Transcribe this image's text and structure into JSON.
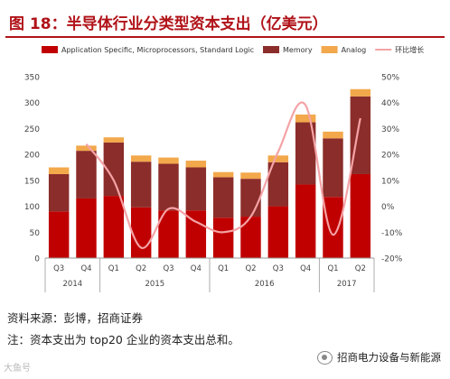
{
  "figure": {
    "title": "图 18：半导体行业分类型资本支出（亿美元）",
    "source": "资料来源：彭博，招商证券",
    "note": "注：资本支出为 top20 企业的资本支出总和。",
    "brand": "招商电力设备与新能源",
    "watermark": "大鱼号"
  },
  "chart_data": {
    "type": "bar",
    "stacked": true,
    "categories": [
      "Q3",
      "Q4",
      "Q1",
      "Q2",
      "Q3",
      "Q4",
      "Q1",
      "Q2",
      "Q3",
      "Q4",
      "Q1",
      "Q2"
    ],
    "year_groups": [
      {
        "label": "2014",
        "count": 2
      },
      {
        "label": "2015",
        "count": 4
      },
      {
        "label": "2016",
        "count": 4
      },
      {
        "label": "2017",
        "count": 2
      }
    ],
    "series": [
      {
        "name": "Application Specific, Microprocessors, Standard Logic",
        "color": "#c00000",
        "values": [
          90,
          115,
          120,
          98,
          92,
          92,
          78,
          80,
          100,
          142,
          118,
          162
        ]
      },
      {
        "name": "Memory",
        "color": "#8b2d2a",
        "values": [
          72,
          92,
          103,
          88,
          90,
          83,
          78,
          73,
          85,
          120,
          113,
          150
        ]
      },
      {
        "name": "Analog",
        "color": "#f2a84b",
        "values": [
          13,
          10,
          10,
          12,
          12,
          13,
          10,
          12,
          13,
          15,
          13,
          14
        ]
      }
    ],
    "line_series": {
      "name": "环比增长",
      "color": "#f4a3a6",
      "values": [
        null,
        24,
        10,
        -16,
        -1,
        -6,
        -10,
        -4,
        21,
        39,
        -11,
        34
      ]
    },
    "y_left": {
      "min": 0,
      "max": 350,
      "ticks": [
        0,
        50,
        100,
        150,
        200,
        250,
        300,
        350
      ]
    },
    "y_right": {
      "min": -20,
      "max": 50,
      "ticks": [
        "-20%",
        "-10%",
        "0%",
        "10%",
        "20%",
        "30%",
        "40%",
        "50%"
      ]
    },
    "legend_position": "top"
  }
}
